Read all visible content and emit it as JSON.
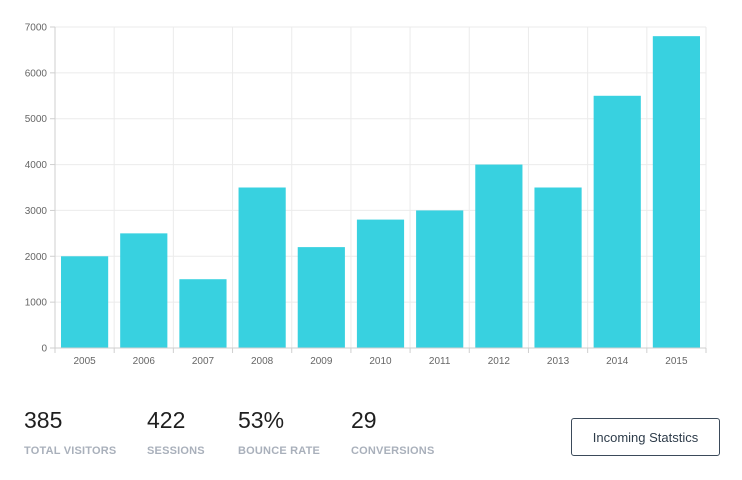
{
  "chart_data": {
    "type": "bar",
    "categories": [
      "2005",
      "2006",
      "2007",
      "2008",
      "2009",
      "2010",
      "2011",
      "2012",
      "2013",
      "2014",
      "2015"
    ],
    "values": [
      2000,
      2500,
      1500,
      3500,
      2200,
      2800,
      3000,
      4000,
      3500,
      5500,
      6800
    ],
    "ylim": [
      0,
      7000
    ],
    "yticks": [
      0,
      1000,
      2000,
      3000,
      4000,
      5000,
      6000,
      7000
    ],
    "grid": true,
    "bar_color": "#38d1e0"
  },
  "stats": [
    {
      "value": "385",
      "label": "TOTAL VISITORS"
    },
    {
      "value": "422",
      "label": "SESSIONS"
    },
    {
      "value": "53%",
      "label": "BOUNCE RATE"
    },
    {
      "value": "29",
      "label": "CONVERSIONS"
    }
  ],
  "cta": {
    "label": "Incoming Statstics"
  }
}
